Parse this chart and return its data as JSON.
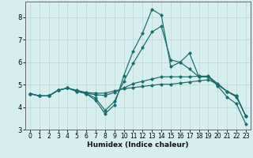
{
  "xlabel": "Humidex (Indice chaleur)",
  "bg_color": "#d7eeee",
  "grid_color": "#c0d8d8",
  "line_color": "#1a6b6b",
  "xlim": [
    -0.5,
    23.5
  ],
  "ylim": [
    3.0,
    8.7
  ],
  "yticks": [
    3,
    4,
    5,
    6,
    7,
    8
  ],
  "xticks": [
    0,
    1,
    2,
    3,
    4,
    5,
    6,
    7,
    8,
    9,
    10,
    11,
    12,
    13,
    14,
    15,
    16,
    17,
    18,
    19,
    20,
    21,
    22,
    23
  ],
  "series": [
    [
      4.6,
      4.5,
      4.5,
      4.75,
      4.85,
      4.7,
      4.6,
      4.3,
      3.7,
      4.1,
      5.4,
      6.5,
      7.3,
      8.35,
      8.1,
      5.8,
      6.0,
      6.4,
      5.35,
      5.35,
      4.95,
      4.45,
      4.15,
      3.25
    ],
    [
      4.6,
      4.5,
      4.5,
      4.75,
      4.85,
      4.7,
      4.6,
      4.4,
      3.85,
      4.25,
      5.15,
      5.95,
      6.65,
      7.35,
      7.6,
      6.1,
      6.0,
      5.7,
      5.35,
      5.35,
      5.0,
      4.7,
      4.45,
      3.6
    ],
    [
      4.6,
      4.5,
      4.5,
      4.75,
      4.85,
      4.72,
      4.62,
      4.55,
      4.52,
      4.65,
      4.85,
      5.05,
      5.15,
      5.25,
      5.35,
      5.35,
      5.35,
      5.35,
      5.38,
      5.38,
      5.05,
      4.7,
      4.5,
      3.6
    ],
    [
      4.6,
      4.5,
      4.5,
      4.75,
      4.85,
      4.75,
      4.65,
      4.62,
      4.62,
      4.72,
      4.82,
      4.87,
      4.92,
      4.97,
      5.02,
      5.02,
      5.07,
      5.12,
      5.17,
      5.22,
      5.02,
      4.7,
      4.5,
      3.6
    ]
  ]
}
